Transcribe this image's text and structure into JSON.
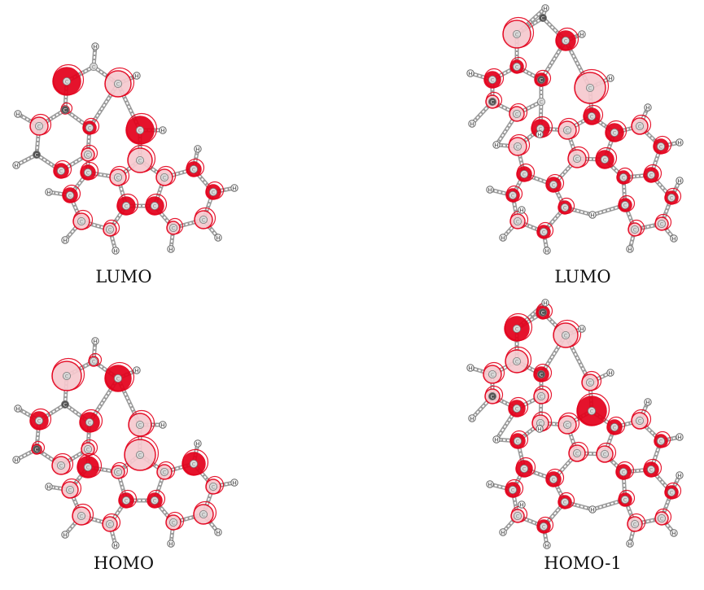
{
  "figure": {
    "panels": [
      {
        "label": "LUMO"
      },
      {
        "label": "LUMO"
      },
      {
        "label": "HOMO"
      },
      {
        "label": "HOMO-1"
      }
    ]
  },
  "colors": {
    "lobe": "#e3001b",
    "lobe_light": "#f6c9cf",
    "carbon_light": "#d8d8d8",
    "carbon_dark": "#555555",
    "hydrogen": "#f2f2f2",
    "bond": "#9a9a9a"
  }
}
